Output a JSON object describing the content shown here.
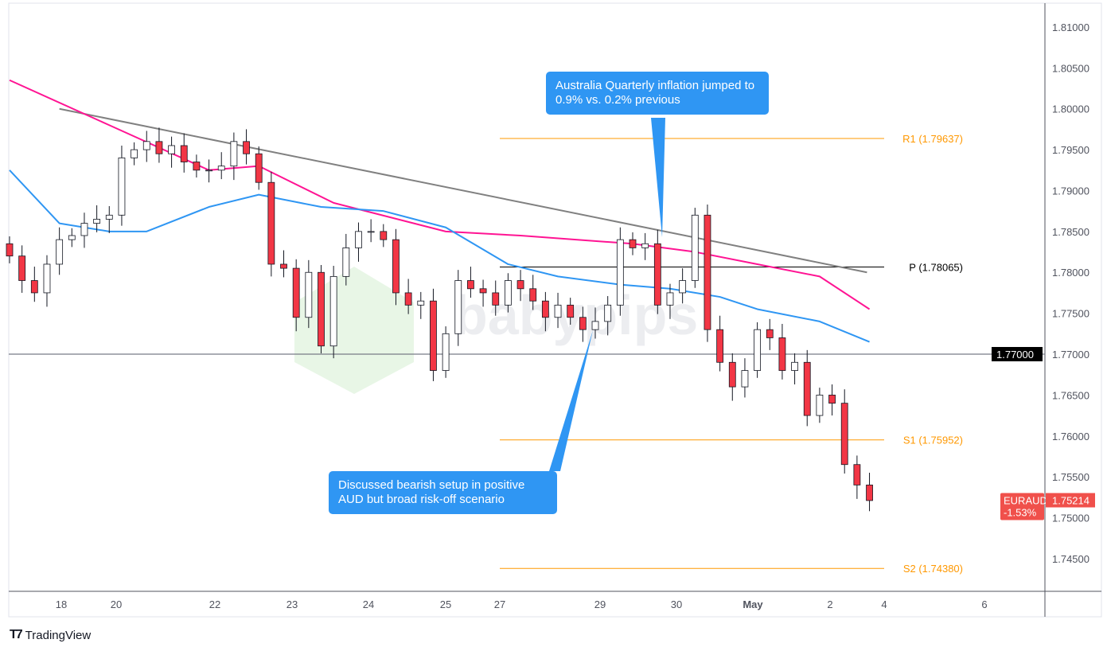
{
  "chart_data": {
    "type": "candlestick",
    "symbol": "EURAUD",
    "last_price": "1.75214",
    "change_pct": "-1.53%",
    "closes": [
      1.782,
      1.779,
      1.7775,
      1.781,
      1.784,
      1.7845,
      1.786,
      1.7865,
      1.787,
      1.794,
      1.795,
      1.796,
      1.7945,
      1.7955,
      1.7935,
      1.7925,
      1.7925,
      1.793,
      1.796,
      1.7945,
      1.791,
      1.781,
      1.7805,
      1.7745,
      1.78,
      1.771,
      1.7795,
      1.783,
      1.785,
      1.785,
      1.784,
      1.7775,
      1.776,
      1.7765,
      1.768,
      1.7725,
      1.779,
      1.778,
      1.7775,
      1.776,
      1.779,
      1.778,
      1.7765,
      1.7745,
      1.776,
      1.7745,
      1.773,
      1.774,
      1.776,
      1.784,
      1.783,
      1.7835,
      1.776,
      1.7775,
      1.779,
      1.787,
      1.773,
      1.769,
      1.766,
      1.768,
      1.773,
      1.772,
      1.768,
      1.769,
      1.7625,
      1.765,
      1.764,
      1.7565,
      1.754,
      1.7521
    ],
    "first_open": 1.7835,
    "moving_average_pink": [
      [
        0,
        1.8035
      ],
      [
        8,
        1.798
      ],
      [
        16,
        1.7925
      ],
      [
        20,
        1.793
      ],
      [
        26,
        1.7885
      ],
      [
        35,
        1.785
      ],
      [
        41,
        1.7845
      ],
      [
        50,
        1.7835
      ],
      [
        55,
        1.7825
      ],
      [
        60,
        1.781
      ],
      [
        65,
        1.7795
      ],
      [
        69,
        1.7755
      ]
    ],
    "moving_average_blue": [
      [
        0,
        1.7925
      ],
      [
        4,
        1.786
      ],
      [
        8,
        1.785
      ],
      [
        11,
        1.785
      ],
      [
        16,
        1.788
      ],
      [
        20,
        1.7895
      ],
      [
        25,
        1.788
      ],
      [
        30,
        1.7875
      ],
      [
        35,
        1.7855
      ],
      [
        40,
        1.781
      ],
      [
        44,
        1.7795
      ],
      [
        49,
        1.7785
      ],
      [
        53,
        1.778
      ],
      [
        57,
        1.777
      ],
      [
        60,
        1.7755
      ],
      [
        65,
        1.774
      ],
      [
        69,
        1.7715
      ]
    ],
    "trendline": [
      [
        4,
        1.8
      ],
      [
        68.8,
        1.78
      ]
    ],
    "horizontal_level": {
      "value": 1.77,
      "label": "1.77000"
    },
    "pivots": [
      {
        "label": "R1 (1.79637)",
        "value": 1.79637,
        "color": "#ff9800"
      },
      {
        "label": "P (1.78065)",
        "value": 1.78065,
        "color": "#000000"
      },
      {
        "label": "S1 (1.75952)",
        "value": 1.75952,
        "color": "#ff9800"
      },
      {
        "label": "S2 (1.74380)",
        "value": 1.7438,
        "color": "#ff9800"
      }
    ],
    "y_ticks": [
      "1.81000",
      "1.80500",
      "1.80000",
      "1.79500",
      "1.79000",
      "1.78500",
      "1.78000",
      "1.77500",
      "1.77000",
      "1.76500",
      "1.76000",
      "1.75500",
      "1.75000",
      "1.74500"
    ],
    "x_ticks": [
      "18",
      "20",
      "22",
      "23",
      "24",
      "25",
      "27",
      "29",
      "30",
      "May",
      "2",
      "4",
      "6"
    ],
    "ylim": [
      1.7425,
      1.8125
    ],
    "colors": {
      "up": "#089981",
      "down": "#f23645",
      "pink_ma": "#ff1493",
      "blue_ma": "#2f96f3",
      "trend": "#808080",
      "tag": "#f0504b"
    }
  },
  "annotations": {
    "top": "Australia Quarterly inflation jumped to 0.9% vs. 0.2% previous",
    "bottom": "Discussed bearish setup in positive AUD but broad risk-off scenario"
  },
  "watermark": "babypips",
  "brand": "TradingView"
}
